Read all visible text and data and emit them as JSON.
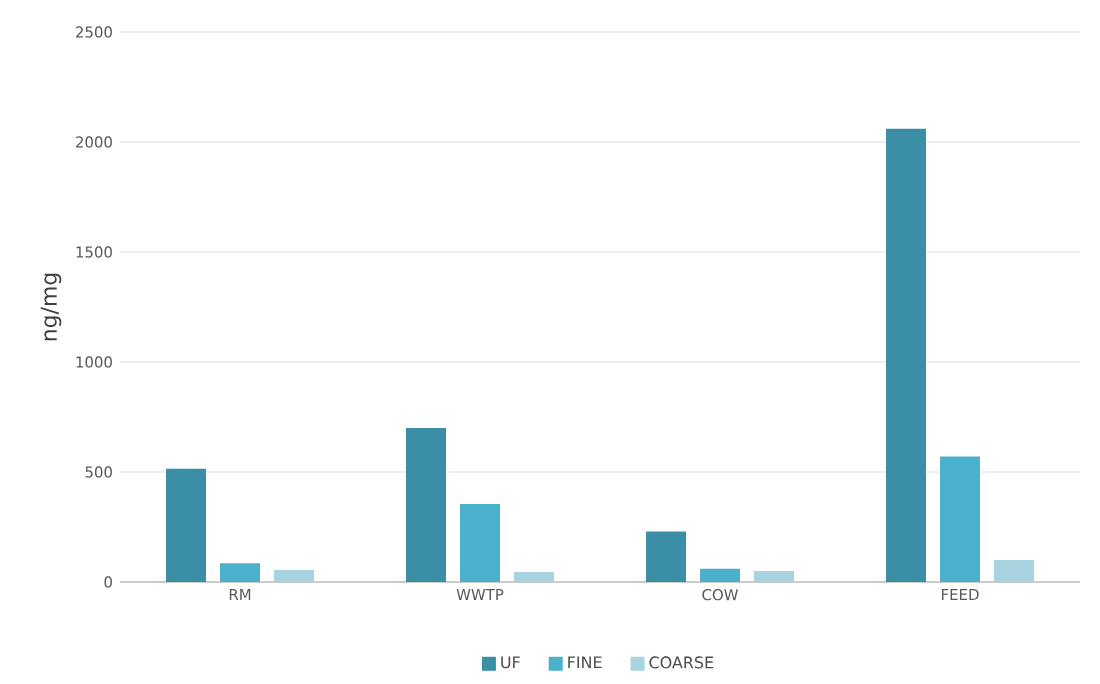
{
  "chart_data": {
    "type": "bar",
    "ylabel": "ng/mg",
    "categories": [
      "RM",
      "WWTP",
      "COW",
      "FEED"
    ],
    "series": [
      {
        "name": "UF",
        "color": "#3a8fa6",
        "values": [
          515,
          700,
          230,
          2060
        ]
      },
      {
        "name": "FINE",
        "color": "#4bb0cb",
        "values": [
          85,
          355,
          60,
          570
        ]
      },
      {
        "name": "COARSE",
        "color": "#a8d4e2",
        "values": [
          55,
          45,
          50,
          100
        ]
      }
    ],
    "ylim": [
      0,
      2500
    ],
    "yticks": [
      0,
      500,
      1000,
      1500,
      2000,
      2500
    ],
    "grid": "y",
    "legend": "bottom"
  }
}
